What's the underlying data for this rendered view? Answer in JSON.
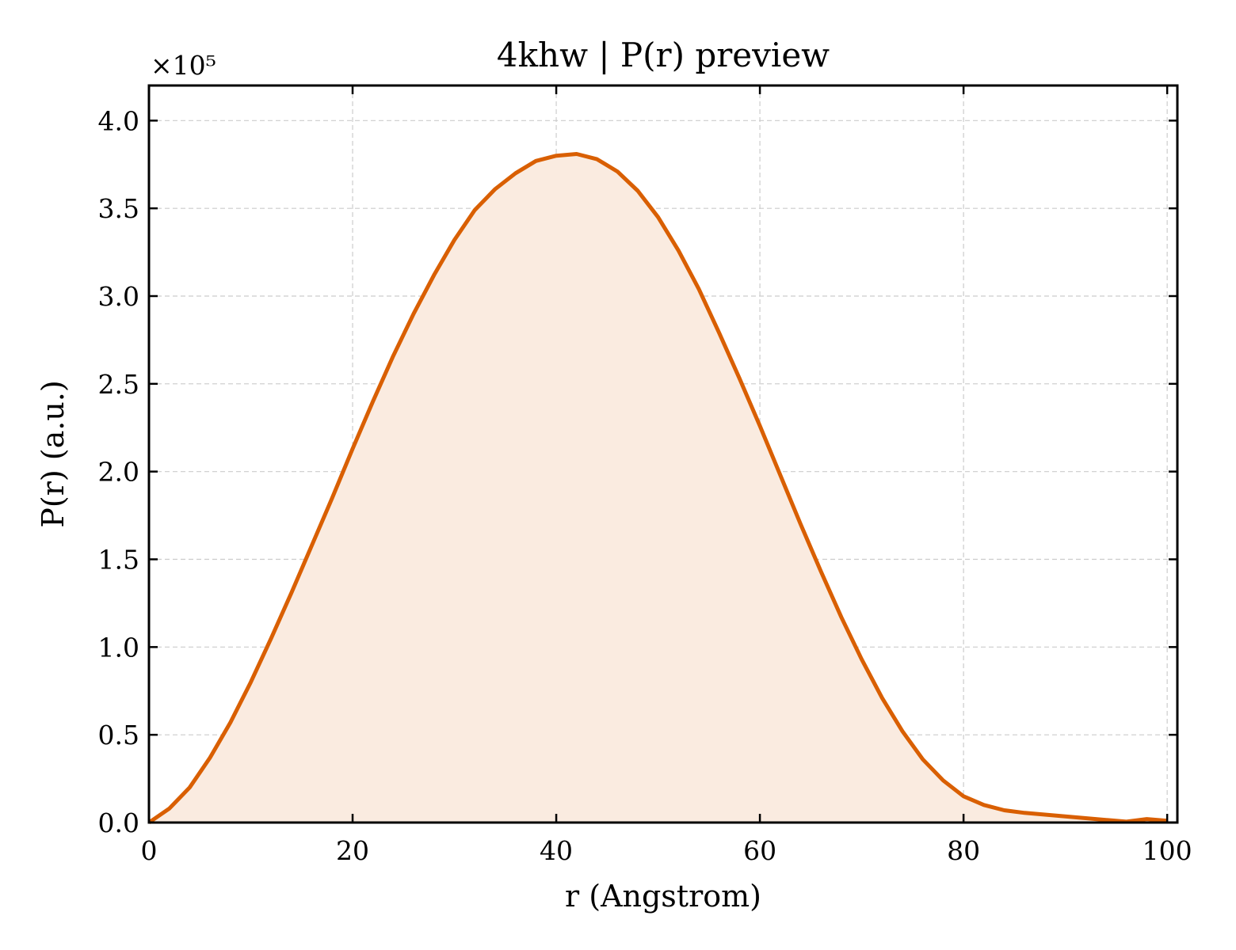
{
  "chart_data": {
    "type": "area",
    "title": "4khw | P(r) preview",
    "xlabel": "r (Angstrom)",
    "ylabel": "P(r) (a.u.)",
    "y_multiplier_label": "×10⁵",
    "y_multiplier": 100000,
    "xlim": [
      0,
      101
    ],
    "ylim": [
      0,
      4.2
    ],
    "xticks": [
      0,
      20,
      40,
      60,
      80,
      100
    ],
    "xtick_labels": [
      "0",
      "20",
      "40",
      "60",
      "80",
      "100"
    ],
    "yticks": [
      0,
      0.5,
      1.0,
      1.5,
      2.0,
      2.5,
      3.0,
      3.5,
      4.0
    ],
    "ytick_labels": [
      "0.0",
      "0.5",
      "1.0",
      "1.5",
      "2.0",
      "2.5",
      "3.0",
      "3.5",
      "4.0"
    ],
    "grid": true,
    "line_color": "#d95f02",
    "fill_color": "#faebe0",
    "series": [
      {
        "x": [
          0,
          2,
          4,
          6,
          8,
          10,
          12,
          14,
          16,
          18,
          20,
          22,
          24,
          26,
          28,
          30,
          32,
          34,
          36,
          38,
          40,
          42,
          44,
          46,
          48,
          50,
          52,
          54,
          56,
          58,
          60,
          62,
          64,
          66,
          68,
          70,
          72,
          74,
          76,
          78,
          80,
          82,
          84,
          86,
          88,
          90,
          92,
          94,
          96,
          98,
          100
        ],
        "y": [
          0.0,
          0.08,
          0.2,
          0.37,
          0.57,
          0.8,
          1.05,
          1.31,
          1.58,
          1.85,
          2.13,
          2.4,
          2.66,
          2.9,
          3.12,
          3.32,
          3.49,
          3.61,
          3.7,
          3.77,
          3.8,
          3.81,
          3.78,
          3.71,
          3.6,
          3.45,
          3.26,
          3.04,
          2.79,
          2.53,
          2.26,
          1.98,
          1.7,
          1.43,
          1.17,
          0.93,
          0.71,
          0.52,
          0.36,
          0.24,
          0.15,
          0.1,
          0.07,
          0.055,
          0.045,
          0.035,
          0.025,
          0.015,
          0.005,
          0.02,
          0.01
        ]
      }
    ]
  }
}
